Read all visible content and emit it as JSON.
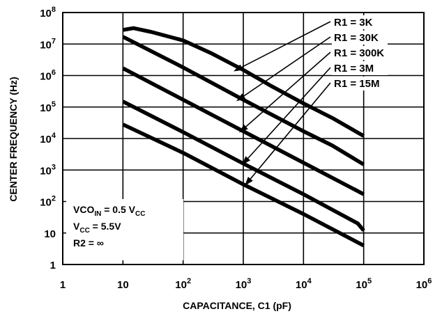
{
  "chart_data": {
    "type": "line",
    "title": "",
    "xlabel": "CAPACITANCE, C1 (pF)",
    "ylabel": "CENTER FREQUENCY (Hz)",
    "x_scale": "log",
    "y_scale": "log",
    "xlim": [
      1,
      1000000
    ],
    "ylim": [
      1,
      100000000
    ],
    "grid": true,
    "x_ticks": [
      {
        "base": "1",
        "exp": ""
      },
      {
        "base": "10",
        "exp": ""
      },
      {
        "base": "10",
        "exp": "2"
      },
      {
        "base": "10",
        "exp": "3"
      },
      {
        "base": "10",
        "exp": "4"
      },
      {
        "base": "10",
        "exp": "5"
      },
      {
        "base": "10",
        "exp": "6"
      }
    ],
    "y_ticks": [
      {
        "base": "1",
        "exp": ""
      },
      {
        "base": "10",
        "exp": ""
      },
      {
        "base": "10",
        "exp": "2"
      },
      {
        "base": "10",
        "exp": "3"
      },
      {
        "base": "10",
        "exp": "4"
      },
      {
        "base": "10",
        "exp": "5"
      },
      {
        "base": "10",
        "exp": "6"
      },
      {
        "base": "10",
        "exp": "7"
      },
      {
        "base": "10",
        "exp": "8"
      }
    ],
    "series": [
      {
        "name": "R1 = 3K",
        "points": [
          [
            10,
            28000000
          ],
          [
            15,
            32000000
          ],
          [
            30,
            24000000
          ],
          [
            100,
            13000000
          ],
          [
            300,
            5000000
          ],
          [
            1000,
            1500000
          ],
          [
            3000,
            450000
          ],
          [
            10000,
            130000
          ],
          [
            30000,
            45000
          ],
          [
            100000,
            12000
          ]
        ]
      },
      {
        "name": "R1 = 30K",
        "points": [
          [
            10,
            17000000
          ],
          [
            100,
            1800000
          ],
          [
            1000,
            170000
          ],
          [
            10000,
            17000
          ],
          [
            30000,
            6000
          ],
          [
            100000,
            1500
          ]
        ]
      },
      {
        "name": "R1 = 300K",
        "points": [
          [
            10,
            1700000
          ],
          [
            100,
            170000
          ],
          [
            1000,
            17000
          ],
          [
            10000,
            1700
          ],
          [
            100000,
            170
          ]
        ]
      },
      {
        "name": "R1 = 3M",
        "points": [
          [
            10,
            150000
          ],
          [
            100,
            16000
          ],
          [
            1000,
            1600
          ],
          [
            10000,
            170
          ],
          [
            80000,
            20
          ],
          [
            100000,
            12
          ]
        ]
      },
      {
        "name": "R1 = 15M",
        "points": [
          [
            10,
            28000
          ],
          [
            100,
            3500
          ],
          [
            1000,
            350
          ],
          [
            10000,
            40
          ],
          [
            100000,
            4
          ]
        ]
      }
    ],
    "legend_placement": "top-right",
    "annotations": [
      {
        "parts": [
          {
            "t": "VCO"
          },
          {
            "t": "IN",
            "sub": true
          },
          {
            "t": " = 0.5 V"
          },
          {
            "t": "CC",
            "sub": true
          }
        ]
      },
      {
        "parts": [
          {
            "t": "V"
          },
          {
            "t": "CC",
            "sub": true
          },
          {
            "t": " = 5.5V"
          }
        ]
      },
      {
        "parts": [
          {
            "t": "R2 = ∞"
          }
        ]
      }
    ]
  }
}
